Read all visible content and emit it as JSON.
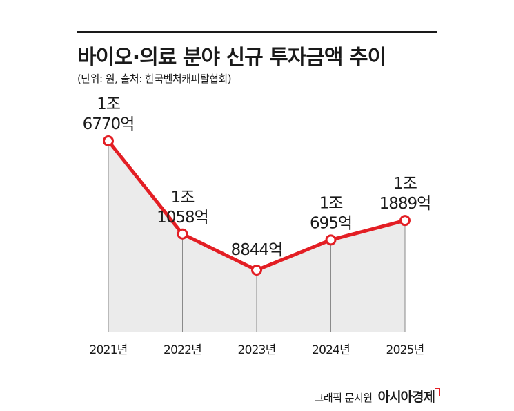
{
  "header": {
    "title": "바이오·의료 분야 신규 투자금액 추이",
    "subtitle": "(단위: 원, 출처: 한국벤처캐피탈협회)"
  },
  "footer": {
    "graphic_credit": "그래픽 문지원",
    "brand": "아시아경제"
  },
  "colors": {
    "line": "#e31e24",
    "area": "#ebebeb",
    "text": "#1a1a1a"
  },
  "chart_data": {
    "type": "line",
    "title": "바이오·의료 분야 신규 투자금액 추이",
    "unit": "원",
    "x": [
      "2021년",
      "2022년",
      "2023년",
      "2024년",
      "2025년"
    ],
    "series": [
      {
        "values_eok": [
          16770,
          11058,
          8844,
          10695,
          11889
        ],
        "labels": [
          [
            "1조",
            "6770억"
          ],
          [
            "1조",
            "1058억"
          ],
          [
            "8844억"
          ],
          [
            "1조",
            "695억"
          ],
          [
            "1조",
            "1889억"
          ]
        ]
      }
    ],
    "area_fill": true,
    "grid": false,
    "legend": false
  }
}
